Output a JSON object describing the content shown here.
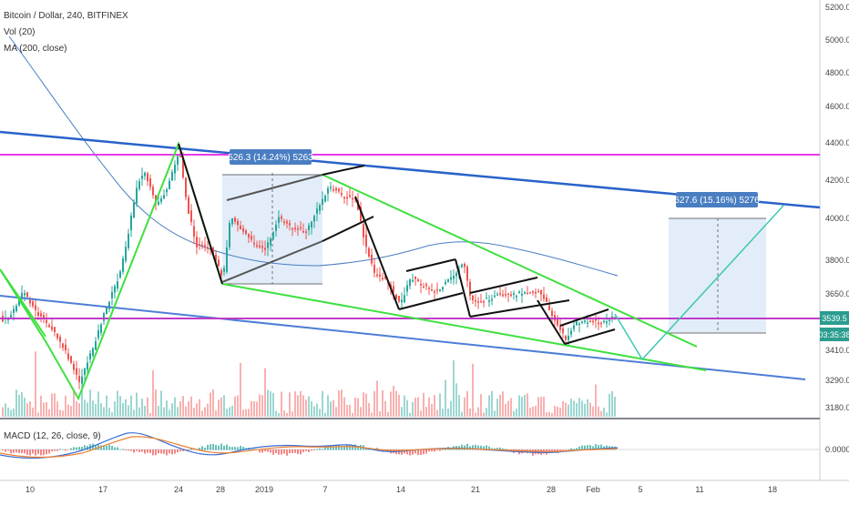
{
  "header": {
    "symbol": "Bitcoin / Dollar, 240, BITFINEX",
    "vol_label": "Vol (20)",
    "ma_label": "MA (200, close)"
  },
  "macd": {
    "label": "MACD (12, 26, close, 9)",
    "zero_label": "0.0000"
  },
  "price_axis": {
    "ticks": [
      "5200.0",
      "5000.0",
      "4800.0",
      "4600.0",
      "4400.0",
      "4200.0",
      "4000.0",
      "3800.0",
      "3650.0",
      "3410.0",
      "3290.0",
      "3180.0"
    ]
  },
  "time_axis": {
    "labels": [
      "10",
      "17",
      "24",
      "28",
      "2019",
      "7",
      "14",
      "21",
      "28",
      "Feb",
      "5",
      "11",
      "18"
    ]
  },
  "price_badge": {
    "price": "3539.5",
    "countdown": "03:35:38",
    "color": "#2a9d8f"
  },
  "measurements": [
    {
      "text": "526.3 (14.24%) 5263"
    },
    {
      "text": "527.6 (15.16%) 5276"
    }
  ],
  "colors": {
    "up": "#26a69a",
    "down": "#ef5350",
    "trendline_blue": "#2962c9",
    "wedge_green": "#3ee03e",
    "resistance_magenta": "#e83be8",
    "ma_line": "#4a7ec2",
    "projection": "#3ec7b0",
    "box_fill": "#dbe9f8"
  },
  "chart_data": {
    "type": "candlestick",
    "symbol": "BTCUSD",
    "exchange": "BITFINEX",
    "interval": "240",
    "price_scale": [
      3180,
      5200
    ],
    "last_price": 3539.5,
    "resistance_level": 4340,
    "support_level": 3539.5,
    "indicators": [
      "Vol (20)",
      "MA (200, close)",
      "MACD (12, 26, close, 9)"
    ]
  }
}
